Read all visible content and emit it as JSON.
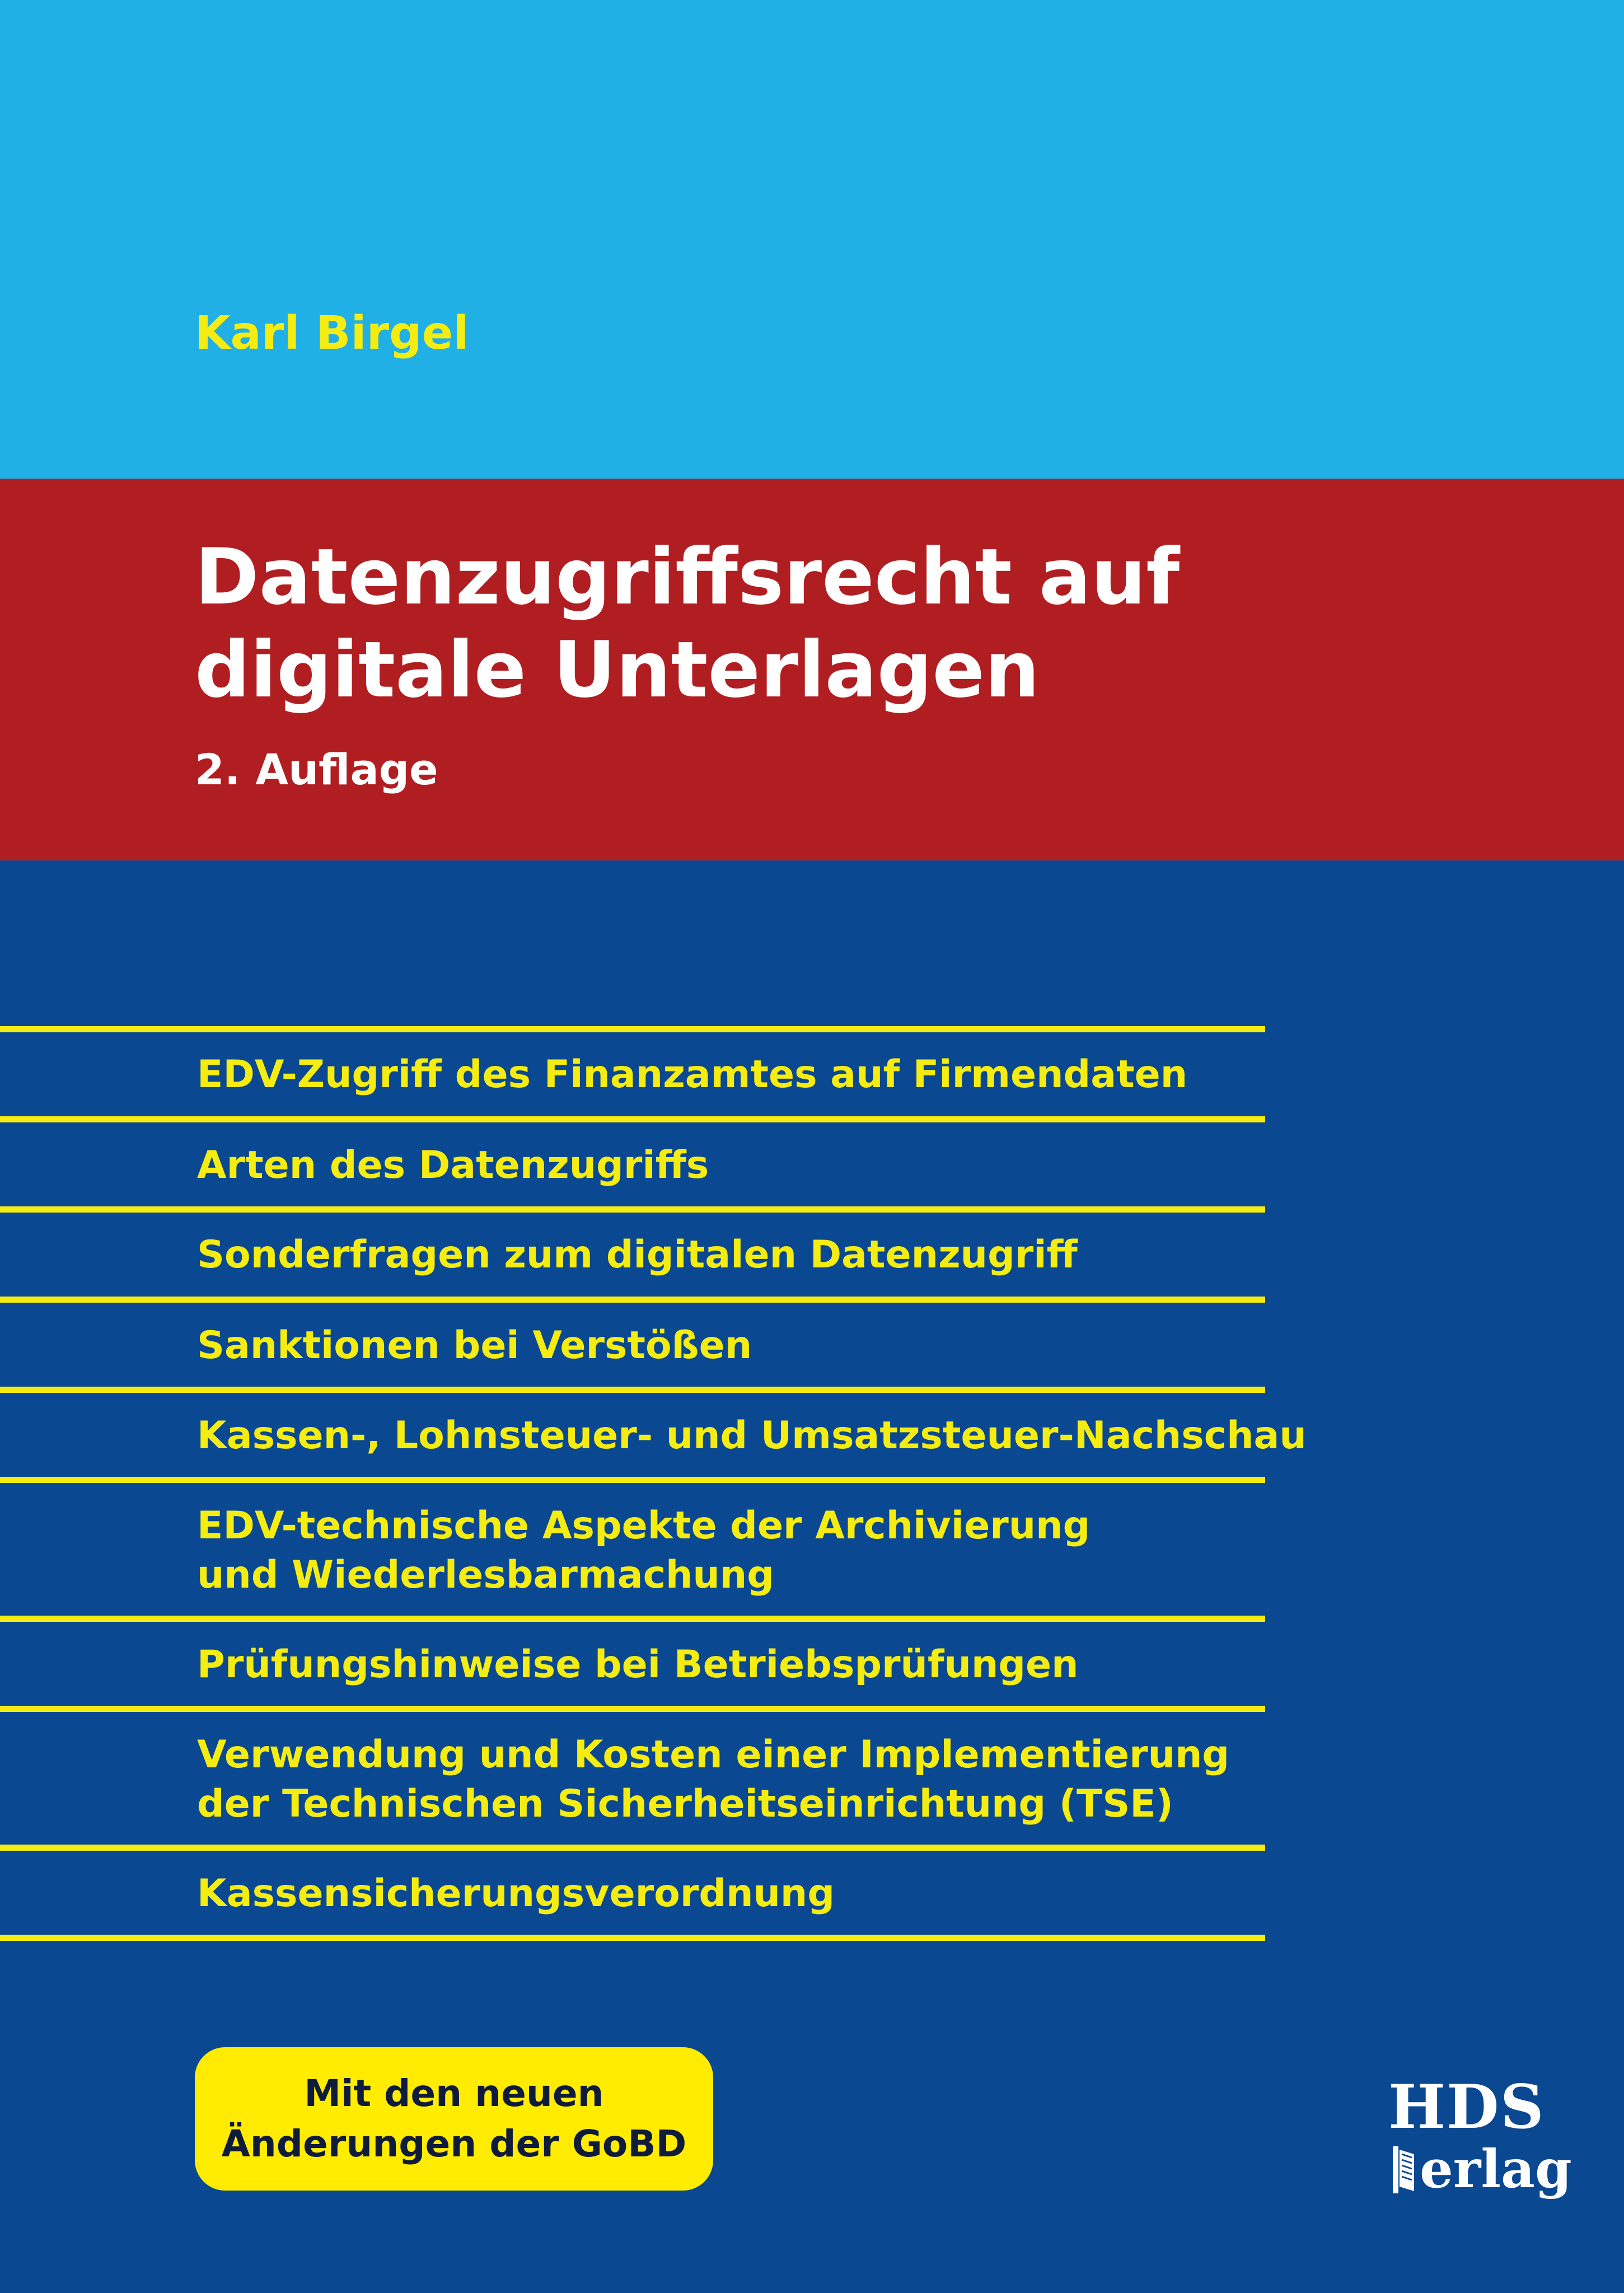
{
  "colors": {
    "sky_blue": "#21b0e5",
    "red": "#b11e22",
    "navy": "#0a4891",
    "yellow": "#f5ec12",
    "badge_yellow": "#ffec00",
    "white": "#ffffff"
  },
  "cover": {
    "author": "Karl Birgel",
    "title_lines": [
      "Datenzugriffsrecht auf",
      "digitale Unterlagen"
    ],
    "edition": "2. Auflage"
  },
  "topics": [
    {
      "lines": [
        "EDV-Zugriff des Finanzamtes auf Firmendaten"
      ]
    },
    {
      "lines": [
        "Arten des Datenzugriffs"
      ]
    },
    {
      "lines": [
        "Sonderfragen zum digitalen Datenzugriff"
      ]
    },
    {
      "lines": [
        "Sanktionen bei Verstößen"
      ]
    },
    {
      "lines": [
        "Kassen-, Lohnsteuer- und Umsatzsteuer-Nachschau"
      ]
    },
    {
      "lines": [
        "EDV-technische Aspekte der Archivierung",
        "und Wiederlesbarmachung"
      ]
    },
    {
      "lines": [
        "Prüfungshinweise bei Betriebsprüfungen"
      ]
    },
    {
      "lines": [
        "Verwendung und Kosten einer Implementierung",
        "der Technischen Sicherheitseinrichtung (TSE)"
      ]
    },
    {
      "lines": [
        "Kassensicherungsverordnung"
      ]
    }
  ],
  "badge": {
    "lines": [
      "Mit den neuen",
      "Änderungen der GoBD"
    ]
  },
  "publisher_logo": {
    "top": "HDS",
    "bottom": "erlag",
    "icon": "book-icon"
  }
}
